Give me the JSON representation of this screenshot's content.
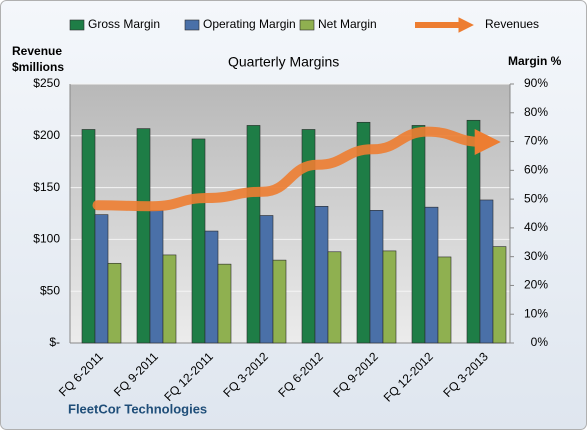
{
  "chart_data": {
    "type": "bar",
    "title": "Quarterly Margins",
    "ylabel": [
      "Revenue",
      "$millions"
    ],
    "y2label": "Margin %",
    "footer": "FleetCor Technologies",
    "categories": [
      "FQ 6-2011",
      "FQ 9-2011",
      "FQ 12-2011",
      "FQ 3-2012",
      "FQ 6-2012",
      "FQ 9-2012",
      "FQ 12-2012",
      "FQ 3-2013"
    ],
    "series": [
      {
        "name": "Gross Margin",
        "color": "#1e7d46",
        "axis": "y2",
        "values": [
          74.2,
          74.5,
          70.9,
          75.6,
          74.2,
          76.7,
          75.6,
          77.4
        ]
      },
      {
        "name": "Operating Margin",
        "color": "#4a70a8",
        "axis": "y2",
        "values": [
          44.6,
          46.1,
          38.9,
          44.3,
          47.5,
          46.1,
          47.2,
          49.7
        ]
      },
      {
        "name": "Net Margin",
        "color": "#8fb050",
        "axis": "y2",
        "values": [
          27.7,
          30.6,
          27.4,
          28.8,
          31.7,
          32.0,
          29.9,
          33.5
        ]
      },
      {
        "name": "Revenues",
        "color": "#ed7d31",
        "type": "line",
        "values": [
          133,
          132,
          140,
          146,
          172,
          187,
          204,
          194
        ]
      }
    ],
    "ylim": [
      0,
      250
    ],
    "yticks": [
      {
        "value": 0,
        "label": "$-"
      },
      {
        "value": 50,
        "label": "$50"
      },
      {
        "value": 100,
        "label": "$100"
      },
      {
        "value": 150,
        "label": "$150"
      },
      {
        "value": 200,
        "label": "$200"
      },
      {
        "value": 250,
        "label": "$250"
      }
    ],
    "y2lim": [
      0,
      90
    ],
    "y2ticks": [
      {
        "value": 0,
        "label": "0%"
      },
      {
        "value": 10,
        "label": "10%"
      },
      {
        "value": 20,
        "label": "20%"
      },
      {
        "value": 30,
        "label": "30%"
      },
      {
        "value": 40,
        "label": "40%"
      },
      {
        "value": 50,
        "label": "50%"
      },
      {
        "value": 60,
        "label": "60%"
      },
      {
        "value": 70,
        "label": "70%"
      },
      {
        "value": 80,
        "label": "80%"
      },
      {
        "value": 90,
        "label": "90%"
      }
    ],
    "grid": true
  }
}
